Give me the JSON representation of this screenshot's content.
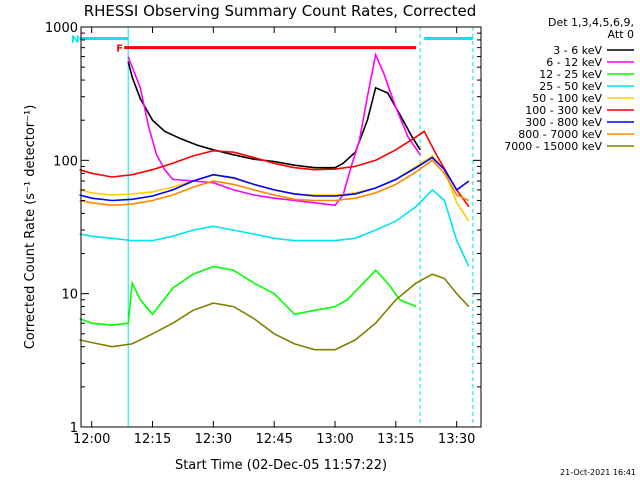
{
  "chart_data": {
    "type": "line",
    "title": "RHESSI Observing Summary Count Rates, Corrected",
    "xlabel": "Start Time (02-Dec-05 11:57:22)",
    "ylabel": "Corrected Count Rate (s⁻¹ detector⁻¹)",
    "y_scale": "log",
    "ylim": [
      1,
      1000
    ],
    "xlim": [
      "11:57:22",
      "13:36:00"
    ],
    "x_ticks": [
      "12:00",
      "12:15",
      "12:30",
      "12:45",
      "13:00",
      "13:15",
      "13:30"
    ],
    "y_ticks": [
      "1",
      "10",
      "100",
      "1000"
    ],
    "grid": false,
    "legend_position": "top-right",
    "legend_header": [
      "Det 1,3,4,5,6,9,",
      "Att 0"
    ],
    "footer_date": "21-Oct-2021 16:41",
    "flags": [
      {
        "label": "F",
        "color": "#ff0000",
        "start": "12:08",
        "end": "13:20",
        "level": 700
      },
      {
        "label": "N",
        "color": "#00e5ee",
        "start": "11:57",
        "end": "12:09",
        "level": 820
      },
      {
        "label": "",
        "color": "#00e5ee",
        "start": "13:22",
        "end": "13:34",
        "level": 820
      }
    ],
    "night_bounds": [
      {
        "time": "12:09",
        "color": "#00e5ee"
      },
      {
        "time": "13:21",
        "color": "#00e5ee"
      },
      {
        "time": "13:34",
        "color": "#00e5ee"
      }
    ],
    "series": [
      {
        "name": "3 - 6 keV",
        "color": "#000000",
        "x": [
          "12:09",
          "12:10",
          "12:12",
          "12:15",
          "12:18",
          "12:22",
          "12:26",
          "12:30",
          "12:35",
          "12:40",
          "12:45",
          "12:50",
          "12:55",
          "13:00",
          "13:02",
          "13:05",
          "13:08",
          "13:10",
          "13:13",
          "13:16",
          "13:19",
          "13:21"
        ],
        "y": [
          550,
          420,
          290,
          200,
          165,
          145,
          130,
          120,
          110,
          102,
          98,
          92,
          88,
          88,
          95,
          115,
          200,
          350,
          320,
          220,
          150,
          120
        ]
      },
      {
        "name": "6 - 12 keV",
        "color": "#ff00ff",
        "x": [
          "12:09",
          "12:10",
          "12:12",
          "12:14",
          "12:16",
          "12:18",
          "12:20",
          "12:25",
          "12:30",
          "12:35",
          "12:40",
          "12:45",
          "12:50",
          "12:55",
          "13:00",
          "13:02",
          "13:04",
          "13:06",
          "13:08",
          "13:10",
          "13:12",
          "13:15",
          "13:18",
          "13:21"
        ],
        "y": [
          600,
          500,
          350,
          180,
          110,
          85,
          72,
          70,
          68,
          60,
          55,
          52,
          50,
          48,
          46,
          55,
          90,
          140,
          300,
          620,
          450,
          250,
          150,
          110
        ]
      },
      {
        "name": "12 - 25 keV",
        "color": "#00ff00",
        "x": [
          "11:57",
          "12:00",
          "12:05",
          "12:09",
          "12:10",
          "12:12",
          "12:15",
          "12:20",
          "12:25",
          "12:30",
          "12:35",
          "12:40",
          "12:45",
          "12:50",
          "12:55",
          "13:00",
          "13:03",
          "13:07",
          "13:10",
          "13:13",
          "13:16",
          "13:20"
        ],
        "y": [
          6.5,
          6.0,
          5.8,
          6.0,
          12,
          9,
          7,
          11,
          14,
          16,
          15,
          12,
          10,
          7,
          7.5,
          8,
          9,
          12,
          15,
          12,
          9,
          8
        ]
      },
      {
        "name": "25 - 50 keV",
        "color": "#00e5ee",
        "x": [
          "11:57",
          "12:00",
          "12:05",
          "12:10",
          "12:15",
          "12:20",
          "12:25",
          "12:30",
          "12:35",
          "12:40",
          "12:45",
          "12:50",
          "12:55",
          "13:00",
          "13:05",
          "13:10",
          "13:15",
          "13:20",
          "13:24",
          "13:27",
          "13:30",
          "13:33"
        ],
        "y": [
          28,
          27,
          26,
          25,
          25,
          27,
          30,
          32,
          30,
          28,
          26,
          25,
          25,
          25,
          26,
          30,
          35,
          45,
          60,
          50,
          25,
          16
        ]
      },
      {
        "name": "50 - 100 keV",
        "color": "#ffcc00",
        "x": [
          "11:57",
          "12:00",
          "12:05",
          "12:10",
          "12:15",
          "12:20",
          "12:25",
          "12:30",
          "12:35",
          "12:40",
          "12:45",
          "12:50",
          "12:55",
          "13:00",
          "13:05",
          "13:10",
          "13:15",
          "13:20",
          "13:24",
          "13:27",
          "13:30",
          "13:33"
        ],
        "y": [
          60,
          57,
          55,
          56,
          58,
          63,
          70,
          78,
          73,
          66,
          60,
          56,
          55,
          55,
          57,
          62,
          72,
          90,
          108,
          85,
          48,
          35
        ]
      },
      {
        "name": "100 - 300 keV",
        "color": "#ff0000",
        "x": [
          "11:57",
          "12:00",
          "12:05",
          "12:10",
          "12:15",
          "12:20",
          "12:25",
          "12:30",
          "12:35",
          "12:40",
          "12:45",
          "12:50",
          "12:55",
          "13:00",
          "13:05",
          "13:10",
          "13:15",
          "13:20",
          "13:22",
          "13:25",
          "13:30",
          "13:33"
        ],
        "y": [
          85,
          80,
          75,
          78,
          85,
          95,
          108,
          118,
          115,
          105,
          95,
          88,
          85,
          86,
          90,
          100,
          120,
          150,
          165,
          110,
          60,
          45
        ]
      },
      {
        "name": "300 - 800 keV",
        "color": "#0000ff",
        "x": [
          "11:57",
          "12:00",
          "12:05",
          "12:10",
          "12:15",
          "12:20",
          "12:25",
          "12:30",
          "12:35",
          "12:40",
          "12:45",
          "12:50",
          "12:55",
          "13:00",
          "13:05",
          "13:10",
          "13:15",
          "13:20",
          "13:24",
          "13:27",
          "13:30",
          "13:33"
        ],
        "y": [
          55,
          52,
          50,
          51,
          54,
          60,
          70,
          78,
          74,
          66,
          60,
          56,
          54,
          54,
          56,
          62,
          72,
          88,
          105,
          85,
          60,
          70
        ]
      },
      {
        "name": "800 - 7000 keV",
        "color": "#ff8800",
        "x": [
          "11:57",
          "12:00",
          "12:05",
          "12:10",
          "12:15",
          "12:20",
          "12:25",
          "12:30",
          "12:35",
          "12:40",
          "12:45",
          "12:50",
          "12:55",
          "13:00",
          "13:05",
          "13:10",
          "13:15",
          "13:20",
          "13:24",
          "13:27",
          "13:30",
          "13:33"
        ],
        "y": [
          50,
          48,
          46,
          47,
          50,
          55,
          63,
          70,
          66,
          60,
          55,
          51,
          50,
          50,
          52,
          57,
          66,
          82,
          100,
          80,
          55,
          50
        ]
      },
      {
        "name": "7000 - 15000 keV",
        "color": "#808000",
        "x": [
          "11:57",
          "12:00",
          "12:05",
          "12:10",
          "12:15",
          "12:20",
          "12:25",
          "12:30",
          "12:35",
          "12:40",
          "12:45",
          "12:50",
          "12:55",
          "13:00",
          "13:05",
          "13:10",
          "13:15",
          "13:20",
          "13:24",
          "13:27",
          "13:30",
          "13:33"
        ],
        "y": [
          4.5,
          4.3,
          4.0,
          4.2,
          5.0,
          6.0,
          7.5,
          8.5,
          8.0,
          6.5,
          5.0,
          4.2,
          3.8,
          3.8,
          4.5,
          6.0,
          9.0,
          12,
          14,
          13,
          10,
          8
        ]
      }
    ]
  }
}
